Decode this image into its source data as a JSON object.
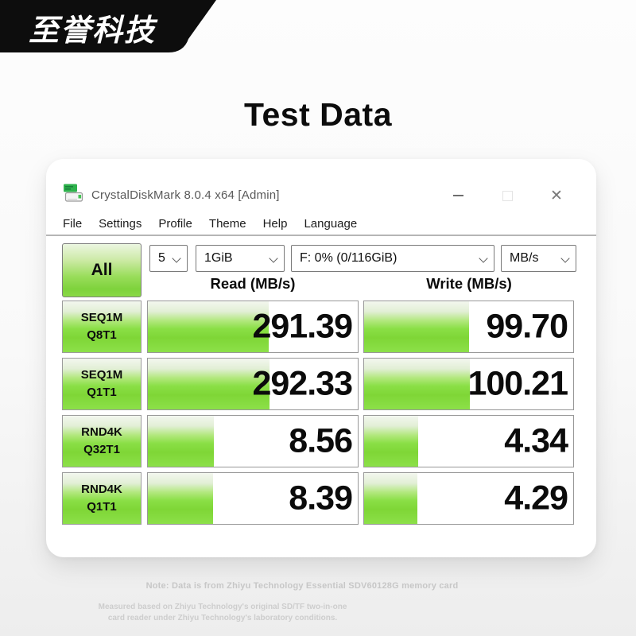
{
  "brand": {
    "logo_text": "至誉科技"
  },
  "page": {
    "title": "Test Data"
  },
  "window": {
    "title": "CrystalDiskMark 8.0.4 x64 [Admin]",
    "menu": [
      "File",
      "Settings",
      "Profile",
      "Theme",
      "Help",
      "Language"
    ],
    "controls": {
      "close": "✕"
    },
    "toolbar": {
      "all_button_label": "All",
      "test_count": "5",
      "test_size": "1GiB",
      "target_drive": "F: 0% (0/116GiB)",
      "unit": "MB/s"
    },
    "column_headers": {
      "read": "Read (MB/s)",
      "write": "Write (MB/s)"
    }
  },
  "results": {
    "rows": [
      {
        "label_line1": "SEQ1M",
        "label_line2": "Q8T1",
        "read_value": "291.39",
        "write_value": "99.70",
        "read_fill_pct": 57.5,
        "write_fill_pct": 50
      },
      {
        "label_line1": "SEQ1M",
        "label_line2": "Q1T1",
        "read_value": "292.33",
        "write_value": "100.21",
        "read_fill_pct": 58,
        "write_fill_pct": 50.5
      },
      {
        "label_line1": "RND4K",
        "label_line2": "Q32T1",
        "read_value": "8.56",
        "write_value": "4.34",
        "read_fill_pct": 31.5,
        "write_fill_pct": 26
      },
      {
        "label_line1": "RND4K",
        "label_line2": "Q1T1",
        "read_value": "8.39",
        "write_value": "4.29",
        "read_fill_pct": 31,
        "write_fill_pct": 25.5
      }
    ]
  },
  "footer": {
    "note": "Note: Data is from Zhiyu Technology Essential SDV60128G memory card",
    "disclaimer_line1": "Measured based on Zhiyu Technology's original SD/TF two-in-one",
    "disclaimer_line2": "card reader under Zhiyu Technology's laboratory conditions."
  },
  "icons": {
    "app_icon": "crystaldiskmark-app-icon",
    "combo_icon": "chevron-down-icon",
    "window_icons": [
      "minimize-icon",
      "maximize-icon",
      "close-icon"
    ]
  },
  "colors": {
    "bar_green": "#7fd636",
    "bar_green_bottom": "#8ce049",
    "bar_top_tint": "#f3f7ef",
    "logo_bg": "#0d0d0d",
    "separator_gray": "#b5b5b5",
    "note_gray": "#c7c7c7",
    "window_bg": "#ffffff"
  }
}
